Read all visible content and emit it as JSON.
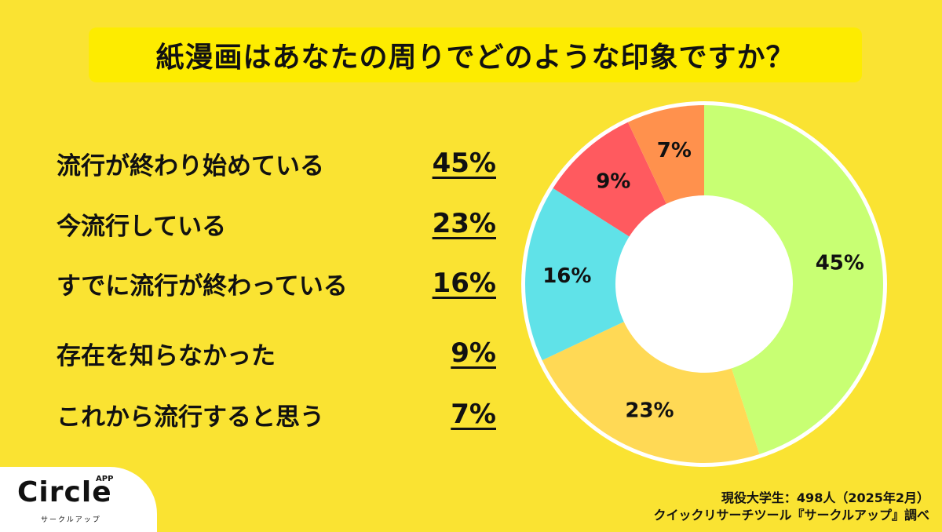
{
  "title": "紙漫画はあなたの周りでどのような印象ですか？",
  "legend": [
    {
      "label": "流行が終わり始めている",
      "value": "45%"
    },
    {
      "label": "今流行している",
      "value": "23%"
    },
    {
      "label": "すでに流行が終わっている",
      "value": "16%"
    },
    {
      "label": "存在を知らなかった",
      "value": "9%"
    },
    {
      "label": "これから流行すると思う",
      "value": "7%"
    }
  ],
  "slice_labels": [
    "45%",
    "23%",
    "16%",
    "9%",
    "7%"
  ],
  "colors": {
    "background": "#fae332",
    "title_box": "#fdec00",
    "slice_1": "#c8ff73",
    "slice_2": "#ffd955",
    "slice_3": "#60e2e8",
    "slice_4": "#ff5a5f",
    "slice_5": "#ff914d",
    "ring": "#ffffff"
  },
  "chart_data": {
    "type": "pie",
    "variant": "donut",
    "title": "紙漫画はあなたの周りでどのような印象ですか？",
    "categories": [
      "流行が終わり始めている",
      "今流行している",
      "すでに流行が終わっている",
      "存在を知らなかった",
      "これから流行すると思う"
    ],
    "values": [
      45,
      23,
      16,
      9,
      7
    ],
    "unit": "%",
    "start_angle": "12 o'clock, clockwise",
    "legend_position": "left",
    "data_labels": [
      "45%",
      "23%",
      "16%",
      "9%",
      "7%"
    ]
  },
  "logo": {
    "name": "Circle",
    "superscript": "APP",
    "subtitle": "サークルアップ"
  },
  "source": {
    "line1": "現役大学生：498人（2025年2月）",
    "line2": "クイックリサーチツール『サークルアップ』調べ"
  }
}
